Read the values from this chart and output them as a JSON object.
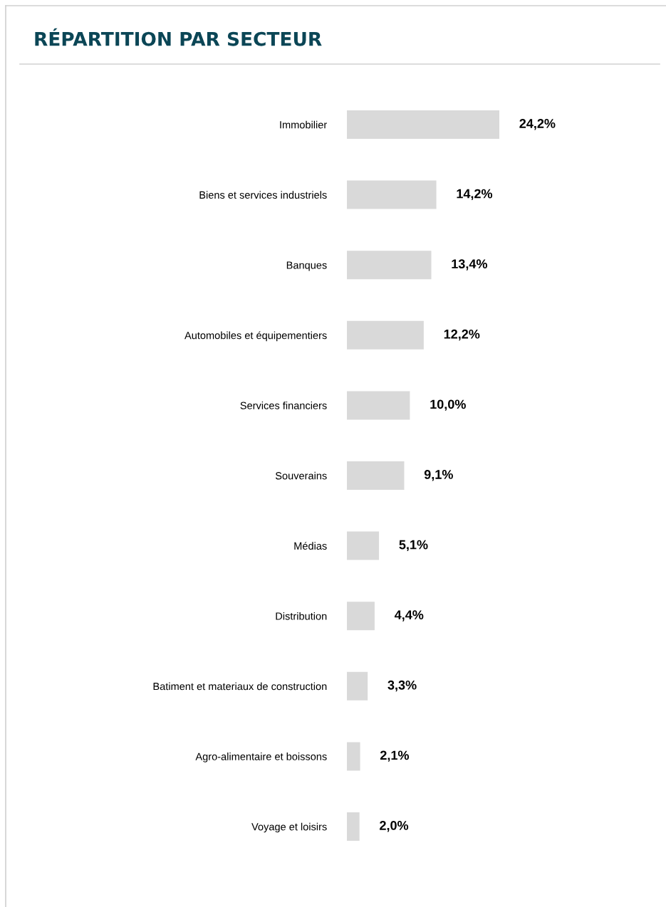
{
  "chart_data": {
    "type": "bar",
    "orientation": "horizontal",
    "title": "RÉPARTITION PAR SECTEUR",
    "categories": [
      "Immobilier",
      "Biens et services industriels",
      "Banques",
      "Automobiles et équipementiers",
      "Services financiers",
      "Souverains",
      "Médias",
      "Distribution",
      "Batiment et materiaux de construction",
      "Agro-alimentaire et boissons",
      "Voyage et loisirs"
    ],
    "values": [
      24.2,
      14.2,
      13.4,
      12.2,
      10.0,
      9.1,
      5.1,
      4.4,
      3.3,
      2.1,
      2.0
    ],
    "value_labels": [
      "24,2%",
      "14,2%",
      "13,4%",
      "12,2%",
      "10,0%",
      "9,1%",
      "5,1%",
      "4,4%",
      "3,3%",
      "2,1%",
      "2,0%"
    ],
    "color": "#d9d9d9",
    "grid": false,
    "legend": false
  }
}
